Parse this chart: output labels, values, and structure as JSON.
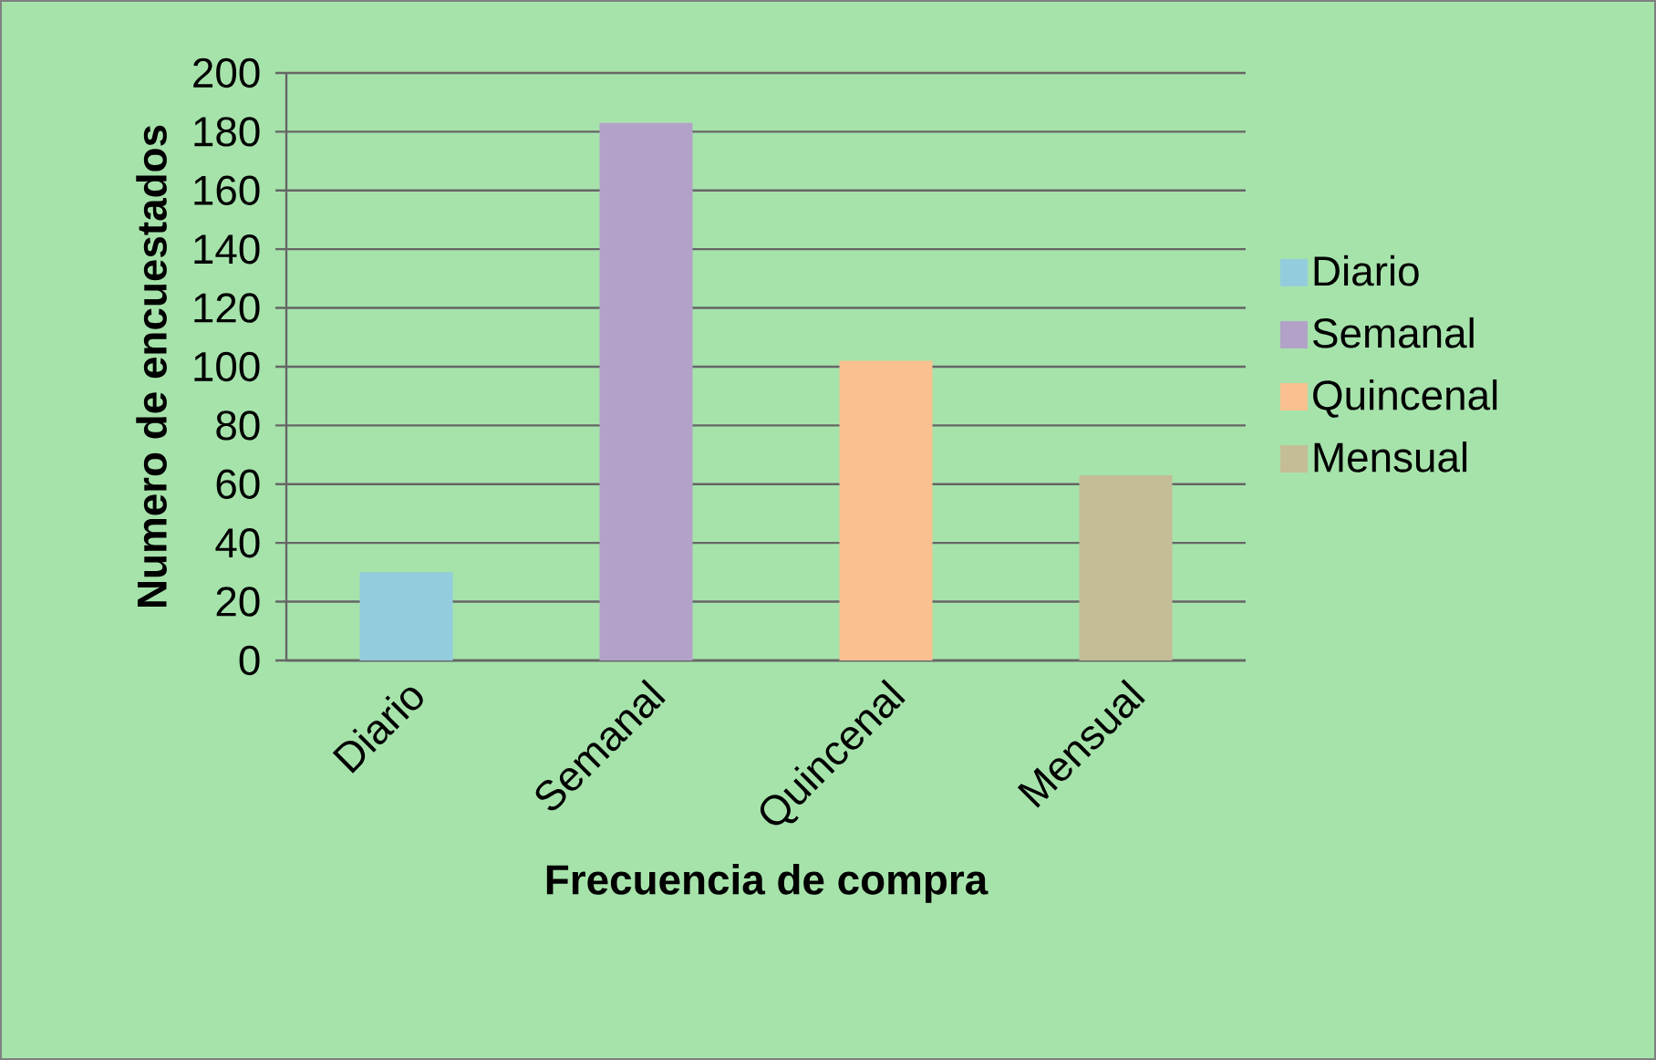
{
  "chart_data": {
    "type": "bar",
    "xlabel": "Frecuencia de compra",
    "ylabel": "Numero de encuestados",
    "categories": [
      "Diario",
      "Semanal",
      "Quincenal",
      "Mensual"
    ],
    "series": [
      {
        "name": "Diario",
        "color": "#93cddd",
        "values": [
          30,
          null,
          null,
          null
        ]
      },
      {
        "name": "Semanal",
        "color": "#b3a2c7",
        "values": [
          null,
          183,
          null,
          null
        ]
      },
      {
        "name": "Quincenal",
        "color": "#fac090",
        "values": [
          null,
          null,
          102,
          null
        ]
      },
      {
        "name": "Mensual",
        "color": "#c4bd97",
        "values": [
          null,
          null,
          null,
          63
        ]
      }
    ],
    "ylim": [
      0,
      200
    ],
    "yticks": [
      0,
      20,
      40,
      60,
      80,
      100,
      120,
      140,
      160,
      180,
      200
    ],
    "grid": "y",
    "legend": "right"
  }
}
